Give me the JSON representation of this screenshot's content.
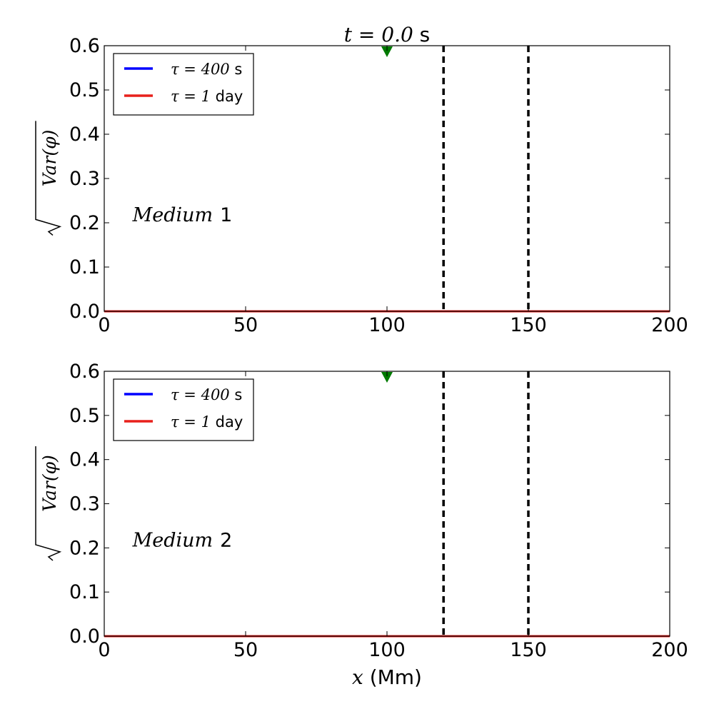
{
  "figure": {
    "title_var": "t",
    "title_eq": " = ",
    "title_value": "0.0",
    "title_unit": " s",
    "xlabel_var": "x",
    "xlabel_unit": " (Mm)"
  },
  "chart_data": [
    {
      "type": "line",
      "title": "t = 0.0 s",
      "xlabel": "",
      "ylabel": "√Var(φ)",
      "xlim": [
        0,
        200
      ],
      "ylim": [
        0.0,
        0.6
      ],
      "x_ticks": [
        0,
        50,
        100,
        150,
        200
      ],
      "x_tick_labels": [
        "0",
        "50",
        "100",
        "150",
        "200"
      ],
      "y_ticks": [
        0.0,
        0.1,
        0.2,
        0.3,
        0.4,
        0.5,
        0.6
      ],
      "y_tick_labels": [
        "0.0",
        "0.1",
        "0.2",
        "0.3",
        "0.4",
        "0.5",
        "0.6"
      ],
      "grid": false,
      "legend_position": "top-left",
      "annotation": {
        "text_italic": "Medium",
        "text_num": "1",
        "x": 10,
        "y": 0.2
      },
      "series": [
        {
          "name": "τ = 400 s",
          "name_sym": "τ = ",
          "name_num": "400",
          "name_unit": " s",
          "color": "#0000ff",
          "x": [
            0,
            200
          ],
          "y": [
            0.0,
            0.0
          ]
        },
        {
          "name": "τ = 1 day",
          "name_sym": "τ = ",
          "name_num": "1",
          "name_unit": " day",
          "color": "#e8201c",
          "x": [
            0,
            200
          ],
          "y": [
            0.0,
            0.0
          ]
        }
      ],
      "vlines": [
        {
          "x": 120,
          "style": "dashed",
          "color": "#000000"
        },
        {
          "x": 150,
          "style": "dashed",
          "color": "#000000"
        }
      ],
      "marker": {
        "shape": "triangle-down",
        "x": 100,
        "y": 0.6,
        "color": "#007a00"
      }
    },
    {
      "type": "line",
      "title": "",
      "xlabel": "x (Mm)",
      "ylabel": "√Var(φ)",
      "xlim": [
        0,
        200
      ],
      "ylim": [
        0.0,
        0.6
      ],
      "x_ticks": [
        0,
        50,
        100,
        150,
        200
      ],
      "x_tick_labels": [
        "0",
        "50",
        "100",
        "150",
        "200"
      ],
      "y_ticks": [
        0.0,
        0.1,
        0.2,
        0.3,
        0.4,
        0.5,
        0.6
      ],
      "y_tick_labels": [
        "0.0",
        "0.1",
        "0.2",
        "0.3",
        "0.4",
        "0.5",
        "0.6"
      ],
      "grid": false,
      "legend_position": "top-left",
      "annotation": {
        "text_italic": "Medium",
        "text_num": "2",
        "x": 10,
        "y": 0.2
      },
      "series": [
        {
          "name": "τ = 400 s",
          "name_sym": "τ = ",
          "name_num": "400",
          "name_unit": " s",
          "color": "#0000ff",
          "x": [
            0,
            200
          ],
          "y": [
            0.0,
            0.0
          ]
        },
        {
          "name": "τ = 1 day",
          "name_sym": "τ = ",
          "name_num": "1",
          "name_unit": " day",
          "color": "#e8201c",
          "x": [
            0,
            200
          ],
          "y": [
            0.0,
            0.0
          ]
        }
      ],
      "vlines": [
        {
          "x": 120,
          "style": "dashed",
          "color": "#000000"
        },
        {
          "x": 150,
          "style": "dashed",
          "color": "#000000"
        }
      ],
      "marker": {
        "shape": "triangle-down",
        "x": 100,
        "y": 0.6,
        "color": "#007a00"
      }
    }
  ]
}
